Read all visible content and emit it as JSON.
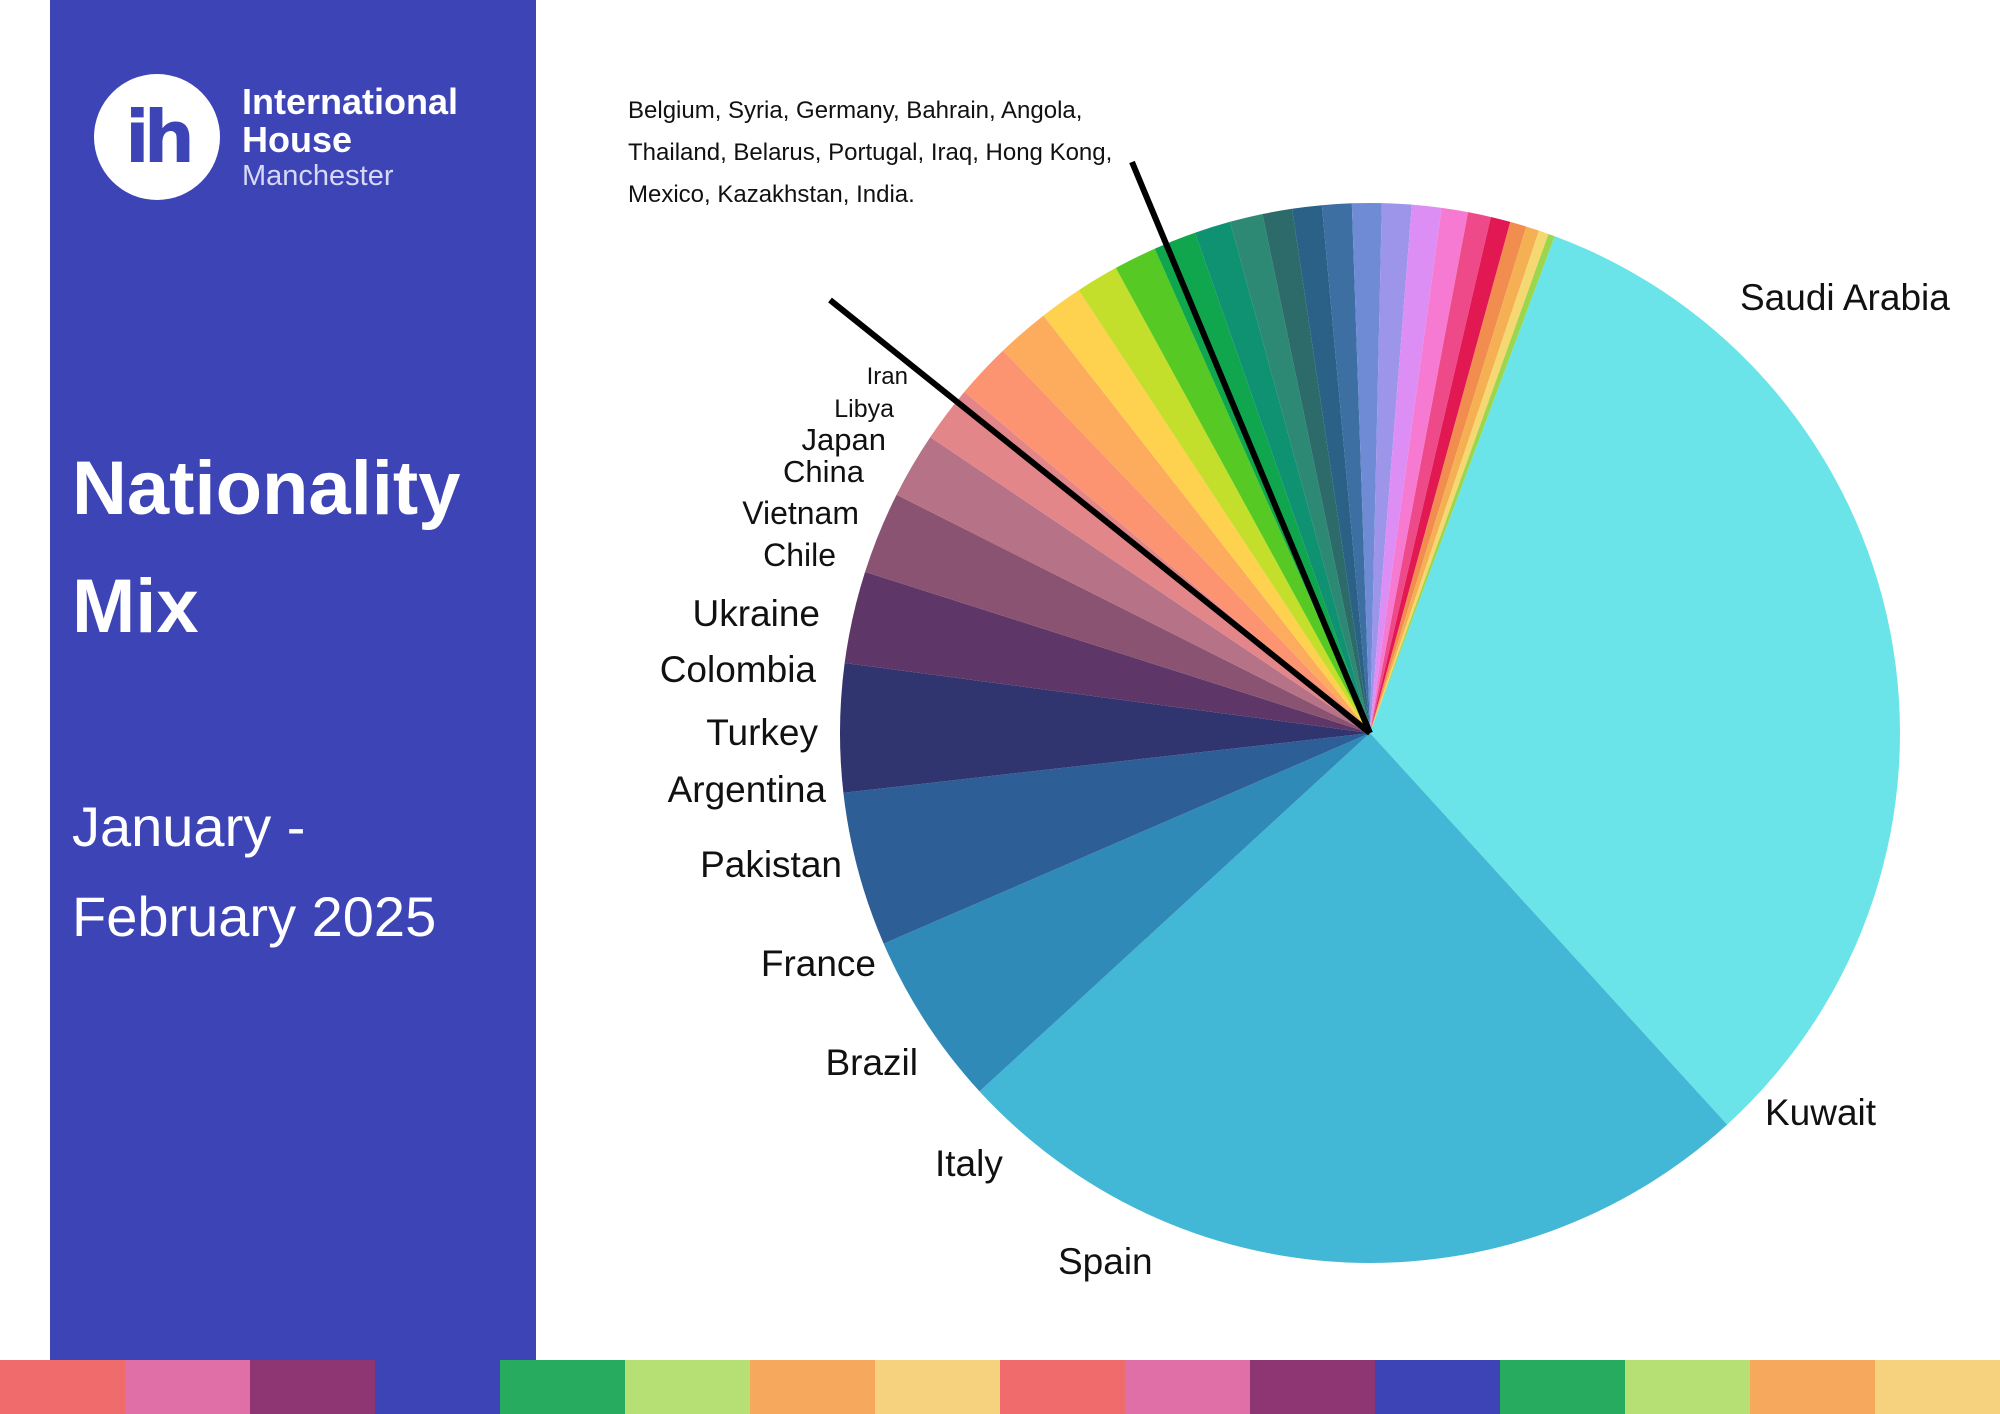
{
  "logo": {
    "mark": "ih",
    "line1": "International",
    "line2": "House",
    "line3": "Manchester"
  },
  "title": {
    "line1": "Nationality",
    "line2": "Mix"
  },
  "period": {
    "line1": "January -",
    "line2": "February 2025"
  },
  "bottom_strip_colors": [
    "#f06c6c",
    "#df6fa6",
    "#8e3573",
    "#3d44b5",
    "#27ab5f",
    "#b6df74",
    "#f6a95d",
    "#f6d27e",
    "#f06c6c",
    "#df6fa6",
    "#8e3573",
    "#3d44b5",
    "#27ab5f",
    "#b6df74",
    "#f6a95d",
    "#f6d27e"
  ],
  "minor_note": "Belgium, Syria, Germany, Bahrain, Angola, Thailand, Belarus, Portugal, Iraq, Hong Kong, Mexico, Kazakhstan, India.",
  "chart_data": {
    "type": "pie",
    "title": "Nationality Mix",
    "unit": "percent (estimated from slice angles)",
    "slices": [
      {
        "label": "Saudi Arabia",
        "value": 32.5,
        "color": "#6ae4e8",
        "show_label": true
      },
      {
        "label": "Kuwait",
        "value": 24.9,
        "color": "#42b7d6",
        "show_label": true
      },
      {
        "label": "Spain",
        "value": 5.3,
        "color": "#2f8ab8",
        "show_label": true
      },
      {
        "label": "Italy",
        "value": 4.7,
        "color": "#2e5e96",
        "show_label": true
      },
      {
        "label": "Brazil",
        "value": 3.9,
        "color": "#31356f",
        "show_label": true
      },
      {
        "label": "France",
        "value": 2.8,
        "color": "#5e3768",
        "show_label": true
      },
      {
        "label": "Pakistan",
        "value": 2.5,
        "color": "#8b5372",
        "show_label": true
      },
      {
        "label": "Argentina",
        "value": 2.0,
        "color": "#b67287",
        "show_label": true
      },
      {
        "label": "Turkey",
        "value": 1.7,
        "color": "#e3868a",
        "show_label": true
      },
      {
        "label": "Colombia",
        "value": 1.7,
        "color": "#fc9472",
        "show_label": true
      },
      {
        "label": "Ukraine",
        "value": 1.6,
        "color": "#fdac5e",
        "show_label": true
      },
      {
        "label": "Chile",
        "value": 1.3,
        "color": "#fed14f",
        "show_label": true
      },
      {
        "label": "Vietnam",
        "value": 1.3,
        "color": "#c4df2b",
        "show_label": true
      },
      {
        "label": "China",
        "value": 1.3,
        "color": "#57c924",
        "show_label": true
      },
      {
        "label": "Japan",
        "value": 1.3,
        "color": "#10a64e",
        "show_label": true
      },
      {
        "label": "Libya",
        "value": 1.1,
        "color": "#0f9272",
        "show_label": true
      },
      {
        "label": "Iran",
        "value": 1.0,
        "color": "#2d8874",
        "show_label": true
      },
      {
        "label": "Belgium",
        "value": 0.9,
        "color": "#2d6b6b",
        "show_label": false
      },
      {
        "label": "Syria",
        "value": 0.9,
        "color": "#2b6186",
        "show_label": false
      },
      {
        "label": "Germany",
        "value": 0.9,
        "color": "#3d6fa3",
        "show_label": false
      },
      {
        "label": "Bahrain",
        "value": 0.9,
        "color": "#6f8bd6",
        "show_label": false
      },
      {
        "label": "Angola",
        "value": 0.9,
        "color": "#9c95ea",
        "show_label": false
      },
      {
        "label": "Thailand",
        "value": 0.9,
        "color": "#dd8ef5",
        "show_label": false
      },
      {
        "label": "Belarus",
        "value": 0.8,
        "color": "#f77ad2",
        "show_label": false
      },
      {
        "label": "Portugal",
        "value": 0.7,
        "color": "#ee4a8a",
        "show_label": false
      },
      {
        "label": "Iraq",
        "value": 0.6,
        "color": "#e21852",
        "show_label": false
      },
      {
        "label": "Hong Kong",
        "value": 0.5,
        "color": "#f18d4f",
        "show_label": false
      },
      {
        "label": "Mexico",
        "value": 0.4,
        "color": "#f6b054",
        "show_label": false
      },
      {
        "label": "Kazakhstan",
        "value": 0.3,
        "color": "#f5d872",
        "show_label": false
      },
      {
        "label": "India",
        "value": 0.2,
        "color": "#9cd64d",
        "show_label": false
      }
    ]
  }
}
